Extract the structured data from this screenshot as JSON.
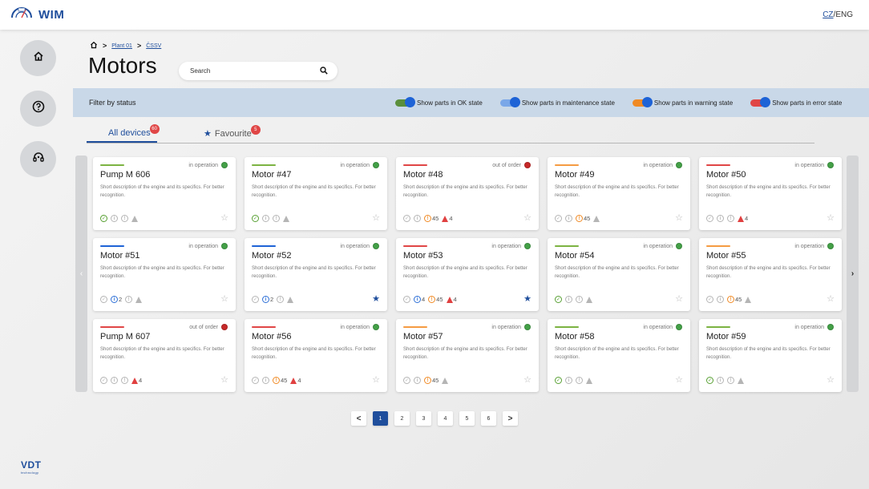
{
  "app": {
    "name": "WIM",
    "lang_cz": "CZ",
    "lang_sep": "/",
    "lang_eng": "ENG"
  },
  "rail": [
    "home-icon",
    "help-icon",
    "support-icon"
  ],
  "vendor": {
    "main": "VDT",
    "sub": "technology"
  },
  "breadcrumb": {
    "home_icon": "home-icon",
    "sep": ">",
    "items": [
      "Plant 01",
      "ČSSV"
    ]
  },
  "page_title": "Motors",
  "search": {
    "placeholder": "Search",
    "value": ""
  },
  "filter": {
    "label": "Filter by status",
    "toggles": [
      {
        "label": "Show parts in OK state",
        "color": "#5a8f3c",
        "on": true
      },
      {
        "label": "Show parts in maintenance state",
        "color": "#7aa7e8",
        "on": true
      },
      {
        "label": "Show parts in warning state",
        "color": "#f08a24",
        "on": true
      },
      {
        "label": "Show parts in error state",
        "color": "#e04646",
        "on": true
      }
    ]
  },
  "tabs": {
    "all": {
      "label": "All devices",
      "count": "60"
    },
    "fav": {
      "label": "Favourite",
      "count": "5"
    }
  },
  "colors": {
    "green": "#7cb342",
    "blue": "#1e63d6",
    "red": "#e04646",
    "orange": "#f59b42",
    "op_dot": "#43a047",
    "oo_dot": "#c62828"
  },
  "devices": [
    {
      "name": "Pump M 606",
      "status": "in operation",
      "bar": "green",
      "desc": "Short description of the engine and its specifics. For better recognition.",
      "ok": true,
      "info": null,
      "warn": null,
      "err": null,
      "fav": false
    },
    {
      "name": "Motor #47",
      "status": "in operation",
      "bar": "green",
      "desc": "Short description of the engine and its specifics. For better recognition.",
      "ok": true,
      "info": null,
      "warn": null,
      "err": null,
      "fav": false
    },
    {
      "name": "Motor #48",
      "status": "out of order",
      "bar": "red",
      "desc": "Short description of the engine and its specifics. For better recognition.",
      "ok": false,
      "info": null,
      "warn": "45",
      "err": "4",
      "fav": false
    },
    {
      "name": "Motor #49",
      "status": "in operation",
      "bar": "orange",
      "desc": "Short description of the engine and its specifics. For better recognition.",
      "ok": false,
      "info": null,
      "warn": "45",
      "err": null,
      "fav": false
    },
    {
      "name": "Motor #50",
      "status": "in operation",
      "bar": "red",
      "desc": "Short description of the engine and its specifics. For better recognition.",
      "ok": false,
      "info": null,
      "warn": null,
      "err": "4",
      "fav": false
    },
    {
      "name": "Motor #51",
      "status": "in operation",
      "bar": "blue",
      "desc": "Short description of the engine and its specifics. For better recognition.",
      "ok": false,
      "info": "2",
      "warn": null,
      "err": null,
      "fav": false
    },
    {
      "name": "Motor #52",
      "status": "in operation",
      "bar": "blue",
      "desc": "Short description of the engine and its specifics. For better recognition.",
      "ok": false,
      "info": "2",
      "warn": null,
      "err": null,
      "fav": true
    },
    {
      "name": "Motor #53",
      "status": "in operation",
      "bar": "red",
      "desc": "Short description of the engine and its specifics. For better recognition.",
      "ok": false,
      "info": "4",
      "warn": "45",
      "err": "4",
      "fav": true
    },
    {
      "name": "Motor #54",
      "status": "in operation",
      "bar": "green",
      "desc": "Short description of the engine and its specifics. For better recognition.",
      "ok": true,
      "info": null,
      "warn": null,
      "err": null,
      "fav": false
    },
    {
      "name": "Motor #55",
      "status": "in operation",
      "bar": "orange",
      "desc": "Short description of the engine and its specifics. For better recognition.",
      "ok": false,
      "info": null,
      "warn": "45",
      "err": null,
      "fav": false
    },
    {
      "name": "Pump M 607",
      "status": "out of order",
      "bar": "red",
      "desc": "Short description of the engine and its specifics. For better recognition.",
      "ok": false,
      "info": null,
      "warn": null,
      "err": "4",
      "fav": false
    },
    {
      "name": "Motor #56",
      "status": "in operation",
      "bar": "red",
      "desc": "Short description of the engine and its specifics. For better recognition.",
      "ok": false,
      "info": null,
      "warn": "45",
      "err": "4",
      "fav": false
    },
    {
      "name": "Motor #57",
      "status": "in operation",
      "bar": "orange",
      "desc": "Short description of the engine and its specifics. For better recognition.",
      "ok": false,
      "info": null,
      "warn": "45",
      "err": null,
      "fav": false
    },
    {
      "name": "Motor #58",
      "status": "in operation",
      "bar": "green",
      "desc": "Short description of the engine and its specifics. For better recognition.",
      "ok": true,
      "info": null,
      "warn": null,
      "err": null,
      "fav": false
    },
    {
      "name": "Motor #59",
      "status": "in operation",
      "bar": "green",
      "desc": "Short description of the engine and its specifics. For better recognition.",
      "ok": true,
      "info": null,
      "warn": null,
      "err": null,
      "fav": false
    }
  ],
  "pagination": {
    "prev": "<",
    "next": ">",
    "pages": [
      "1",
      "2",
      "3",
      "4",
      "5",
      "6"
    ],
    "current": "1"
  },
  "carousel": {
    "prev": "‹",
    "next": "›"
  }
}
